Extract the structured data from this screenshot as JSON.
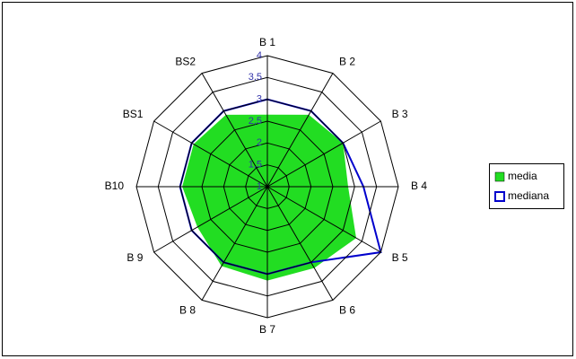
{
  "chart_data": {
    "type": "radar",
    "categories": [
      "B 1",
      "B 2",
      "B 3",
      "B 4",
      "B 5",
      "B 6",
      "B 7",
      "B 8",
      "B 9",
      "B10",
      "BS1",
      "BS2"
    ],
    "series": [
      {
        "name": "media",
        "color": "#22dd22",
        "values": [
          2.65,
          2.9,
          3.0,
          2.85,
          3.35,
          3.15,
          3.15,
          3.1,
          2.85,
          2.95,
          2.95,
          2.9
        ]
      },
      {
        "name": "mediana",
        "color": "#0000cc",
        "values": [
          3,
          3,
          3,
          3.2,
          4,
          3,
          3,
          3,
          3,
          3,
          3,
          3
        ]
      }
    ],
    "ylim": [
      1,
      4
    ],
    "yticks": [
      1,
      {
        "value": 1.5,
        "label": "1,5"
      },
      2,
      {
        "value": 2.5,
        "label": "2,5"
      },
      3,
      {
        "value": 3.5,
        "label": "3,5"
      },
      4
    ],
    "grid": true,
    "legend": "right"
  }
}
